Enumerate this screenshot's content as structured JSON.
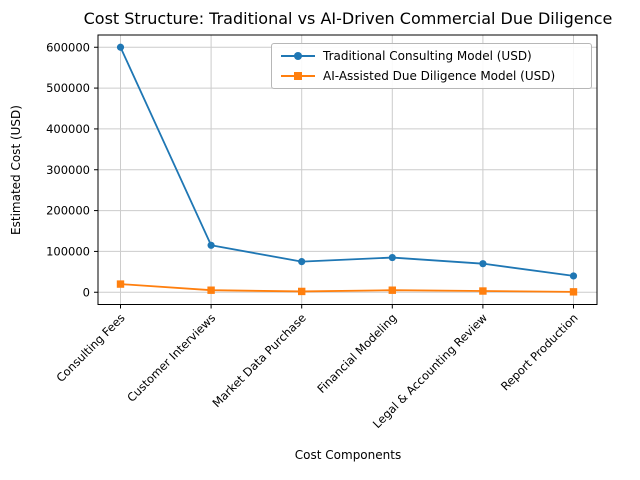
{
  "chart_data": {
    "type": "line",
    "title": "Cost Structure: Traditional vs AI-Driven Commercial Due Diligence",
    "xlabel": "Cost Components",
    "ylabel": "Estimated Cost (USD)",
    "categories": [
      "Consulting Fees",
      "Customer Interviews",
      "Market Data Purchase",
      "Financial Modeling",
      "Legal & Accounting Review",
      "Report Production"
    ],
    "series": [
      {
        "name": "Traditional Consulting Model (USD)",
        "color": "#1f77b4",
        "marker": "circle",
        "values": [
          600000,
          115000,
          75000,
          85000,
          70000,
          40000
        ]
      },
      {
        "name": "AI-Assisted Due Diligence Model (USD)",
        "color": "#ff7f0e",
        "marker": "square",
        "values": [
          20000,
          5000,
          2000,
          5000,
          3000,
          1000
        ]
      }
    ],
    "y_ticks": [
      0,
      100000,
      200000,
      300000,
      400000,
      500000,
      600000
    ],
    "ylim": [
      -30000,
      630000
    ],
    "grid": true,
    "legend_position": "upper right",
    "colors": {
      "grid": "#cccccc",
      "spine": "#000000",
      "text": "#000000",
      "background": "#ffffff"
    }
  }
}
